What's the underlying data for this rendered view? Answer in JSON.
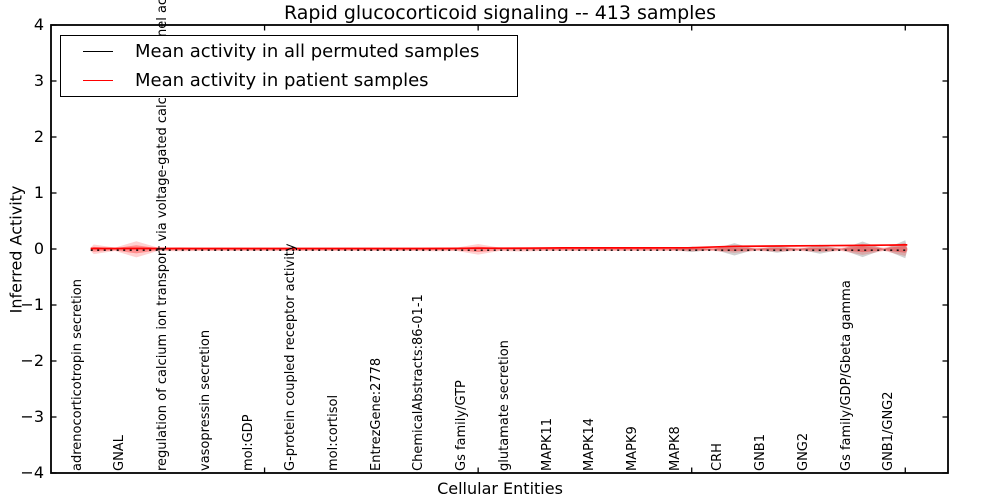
{
  "chart_data": {
    "type": "violin-line",
    "title": "Rapid glucocorticoid signaling -- 413 samples",
    "xlabel": "Cellular Entities",
    "ylabel": "Inferred Activity",
    "ylim": [
      -4,
      4
    ],
    "yticks": [
      4,
      3,
      2,
      1,
      0,
      -1,
      -2,
      -3,
      -4
    ],
    "ytick_labels": [
      "4",
      "3",
      "2",
      "1",
      "0",
      "−1",
      "−2",
      "−3",
      "−4"
    ],
    "xticks_major_positions": [
      5,
      10,
      15,
      20
    ],
    "grid": false,
    "legend_position": "upper left",
    "categories": [
      "adrenocorticotropin secretion",
      "GNAL",
      "regulation of calcium ion transport via voltage-gated calcium channel activity",
      "vasopressin secretion",
      "mol:GDP",
      "G-protein coupled receptor activity",
      "mol:cortisol",
      "EntrezGene:2778",
      "ChemicalAbstracts:86-01-1",
      "Gs family/GTP",
      "glutamate secretion",
      "MAPK11",
      "MAPK14",
      "MAPK9",
      "MAPK8",
      "CRH",
      "GNB1",
      "GNG2",
      "Gs family/GDP/Gbeta gamma",
      "GNB1/GNG2"
    ],
    "series": [
      {
        "name": "Mean activity in all permuted samples",
        "color": "#000000",
        "style": "dashed-on-plot",
        "values": [
          0,
          0,
          0,
          0,
          0,
          0,
          0,
          0,
          0,
          0,
          0,
          0,
          0,
          0,
          0,
          0,
          0,
          0,
          0,
          0
        ],
        "spread_halfwidth": [
          0,
          0,
          0,
          0,
          0,
          0,
          0,
          0,
          0,
          0,
          0,
          0,
          0,
          0,
          0.05,
          0.11,
          0.06,
          0.08,
          0.14,
          0.16
        ]
      },
      {
        "name": "Mean activity in patient samples",
        "color": "#ff0000",
        "style": "solid",
        "values": [
          0,
          0,
          0,
          0,
          0,
          0,
          0,
          0,
          0,
          0.005,
          0.005,
          0.01,
          0.01,
          0.01,
          0.015,
          0.04,
          0.045,
          0.05,
          0.055,
          0.065
        ],
        "spread_halfwidth": [
          0.085,
          0.145,
          0.035,
          0.03,
          0.03,
          0.03,
          0.03,
          0.03,
          0.035,
          0.095,
          0.04,
          0.03,
          0.03,
          0.03,
          0.035,
          0.065,
          0.045,
          0.05,
          0.1,
          0.12
        ]
      }
    ]
  },
  "legend": {
    "entries": [
      {
        "label": "Mean activity in all permuted samples",
        "color": "#000000"
      },
      {
        "label": "Mean activity in patient samples",
        "color": "#ff0000"
      }
    ]
  }
}
